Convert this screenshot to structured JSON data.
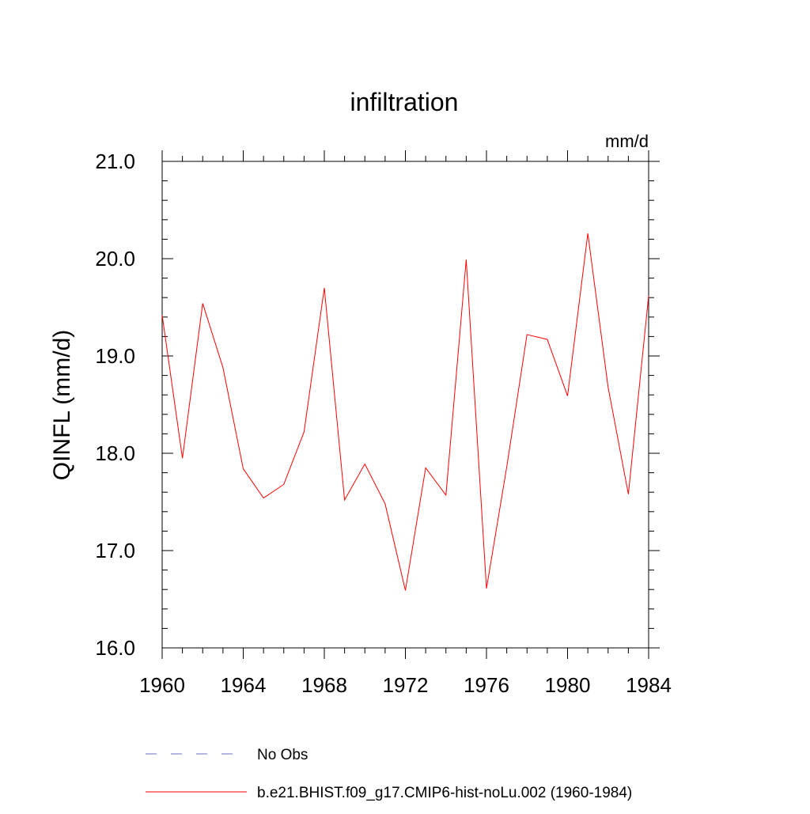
{
  "chart_data": {
    "type": "line",
    "title": "infiltration",
    "units_label": "mm/d",
    "ylabel": "QINFL  (mm/d)",
    "xlabel": "",
    "xlim": [
      1960,
      1984
    ],
    "ylim": [
      16.0,
      21.0
    ],
    "x_ticks": [
      1960,
      1964,
      1968,
      1972,
      1976,
      1980,
      1984
    ],
    "x_tick_labels": [
      "1960",
      "1964",
      "1968",
      "1972",
      "1976",
      "1980",
      "1984"
    ],
    "y_ticks": [
      16.0,
      17.0,
      18.0,
      19.0,
      20.0,
      21.0
    ],
    "y_tick_labels": [
      "16.0",
      "17.0",
      "18.0",
      "19.0",
      "20.0",
      "21.0"
    ],
    "grid": false,
    "legend_position": "bottom",
    "x": [
      1960,
      1961,
      1962,
      1963,
      1964,
      1965,
      1966,
      1967,
      1968,
      1969,
      1970,
      1971,
      1972,
      1973,
      1974,
      1975,
      1976,
      1977,
      1978,
      1979,
      1980,
      1981,
      1982,
      1983,
      1984
    ],
    "series": [
      {
        "name": "b.e21.BHIST.f09_g17.CMIP6-hist-noLu.002 (1960-1984)",
        "color": "#ff0000",
        "style": "solid",
        "values": [
          19.42,
          17.95,
          19.54,
          18.88,
          17.84,
          17.54,
          17.68,
          18.22,
          19.7,
          17.52,
          17.89,
          17.48,
          16.59,
          17.85,
          17.57,
          19.99,
          16.61,
          17.86,
          19.22,
          19.17,
          18.59,
          20.26,
          18.68,
          17.58,
          19.62
        ]
      }
    ],
    "legend": [
      {
        "label": "No Obs",
        "color": "#6f6fc8",
        "style": "dashed"
      },
      {
        "label": "b.e21.BHIST.f09_g17.CMIP6-hist-noLu.002 (1960-1984)",
        "color": "#ff0000",
        "style": "solid"
      }
    ]
  }
}
